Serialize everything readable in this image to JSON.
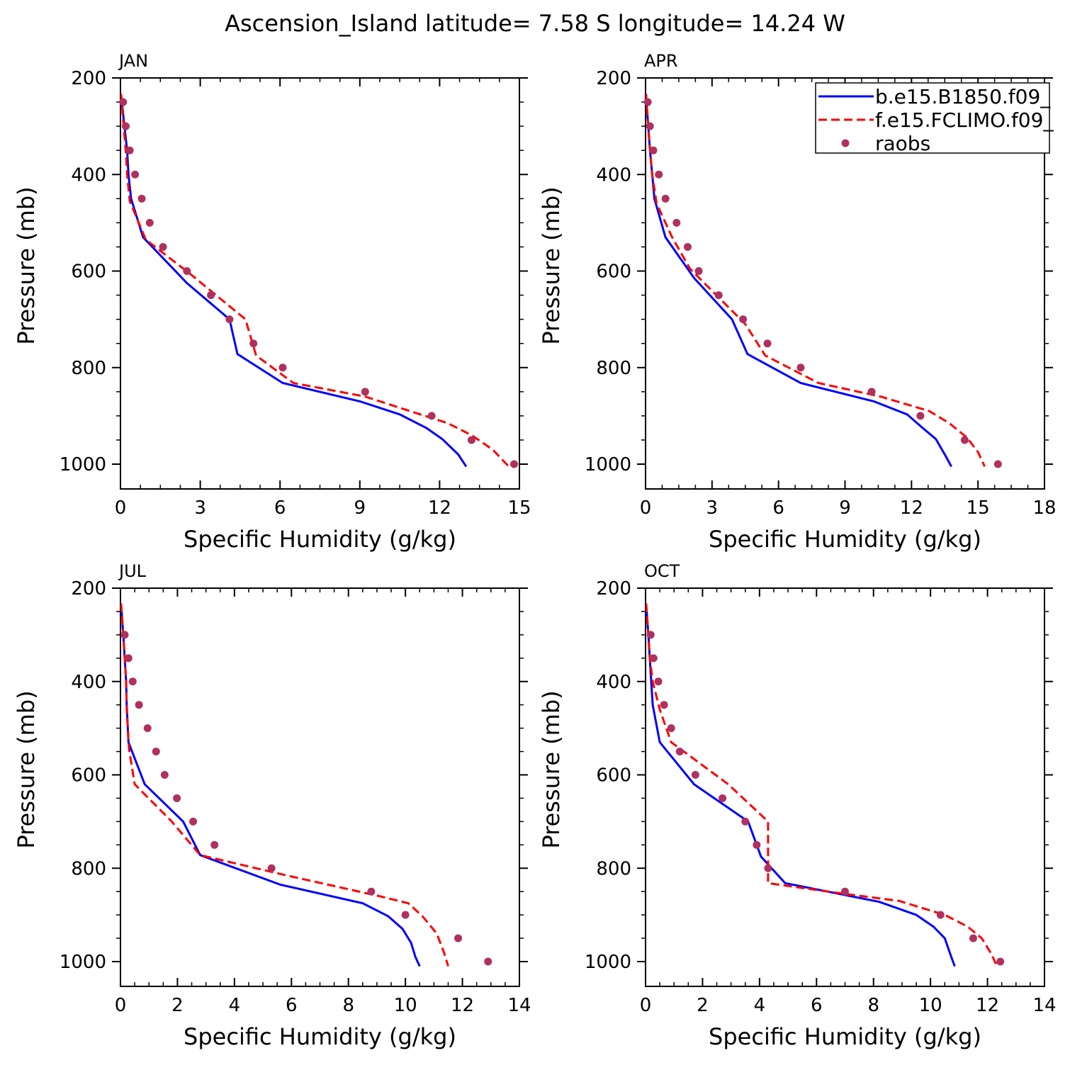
{
  "figure": {
    "title": "Ascension_Island  latitude= 7.58 S longitude= 14.24 W"
  },
  "legend": {
    "placement": "top-right of APR panel",
    "entries": [
      {
        "label": "b.e15.B1850.f09_",
        "style": "solid",
        "color": "#0000ff"
      },
      {
        "label": "f.e15.FCLIMO.f09_",
        "style": "dashed",
        "color": "#ff0000"
      },
      {
        "label": "raobs",
        "style": "dot",
        "color": "#b03060"
      }
    ]
  },
  "chart_data": [
    {
      "type": "line",
      "panel": "JAN",
      "title": "JAN",
      "xlabel": "Specific Humidity (g/kg)",
      "ylabel": "Pressure (mb)",
      "xlim": [
        0,
        15
      ],
      "ylim": [
        1025,
        200
      ],
      "xticks": [
        0,
        3,
        6,
        9,
        12,
        15
      ],
      "xtick_labels": [
        "0",
        "3",
        "6",
        "9",
        "12",
        "15"
      ],
      "yticks": [
        200,
        400,
        600,
        800,
        1000
      ],
      "ytick_labels": [
        "200",
        "400",
        "600",
        "800",
        "1000"
      ],
      "series": [
        {
          "name": "b.e15.B1850.f09_",
          "style": "solid",
          "color": "#0000ff",
          "points": [
            [
              0.02,
              233
            ],
            [
              0.15,
              300
            ],
            [
              0.25,
              350
            ],
            [
              0.3,
              400
            ],
            [
              0.4,
              450
            ],
            [
              0.85,
              530
            ],
            [
              2.5,
              625
            ],
            [
              4.1,
              700
            ],
            [
              4.4,
              772
            ],
            [
              6.1,
              832
            ],
            [
              9.0,
              870
            ],
            [
              10.5,
              897
            ],
            [
              11.5,
              925
            ],
            [
              12.1,
              948
            ],
            [
              12.7,
              980
            ],
            [
              13.0,
              1005
            ]
          ]
        },
        {
          "name": "f.e15.FCLIMO.f09_",
          "style": "dashed",
          "color": "#ff0000",
          "points": [
            [
              0.02,
              233
            ],
            [
              0.12,
              300
            ],
            [
              0.2,
              350
            ],
            [
              0.25,
              400
            ],
            [
              0.35,
              455
            ],
            [
              0.95,
              535
            ],
            [
              2.6,
              605
            ],
            [
              4.7,
              700
            ],
            [
              5.1,
              775
            ],
            [
              6.5,
              832
            ],
            [
              9.2,
              860
            ],
            [
              10.6,
              885
            ],
            [
              12.3,
              915
            ],
            [
              13.2,
              940
            ],
            [
              14.0,
              970
            ],
            [
              14.6,
              1005
            ]
          ]
        },
        {
          "name": "raobs",
          "style": "dot",
          "color": "#b03060",
          "points": [
            [
              0.1,
              250
            ],
            [
              0.2,
              300
            ],
            [
              0.35,
              350
            ],
            [
              0.55,
              400
            ],
            [
              0.8,
              450
            ],
            [
              1.1,
              500
            ],
            [
              1.6,
              550
            ],
            [
              2.5,
              600
            ],
            [
              3.4,
              650
            ],
            [
              4.1,
              700
            ],
            [
              5.0,
              750
            ],
            [
              6.1,
              800
            ],
            [
              9.2,
              850
            ],
            [
              11.7,
              900
            ],
            [
              13.2,
              950
            ],
            [
              14.8,
              1000
            ]
          ]
        }
      ]
    },
    {
      "type": "line",
      "panel": "APR",
      "title": "APR",
      "xlabel": "Specific Humidity (g/kg)",
      "ylabel": "Pressure (mb)",
      "xlim": [
        0,
        18
      ],
      "ylim": [
        1025,
        200
      ],
      "xticks": [
        0,
        3,
        6,
        9,
        12,
        15,
        18
      ],
      "xtick_labels": [
        "0",
        "3",
        "6",
        "9",
        "12",
        "15",
        "18"
      ],
      "yticks": [
        200,
        400,
        600,
        800,
        1000
      ],
      "ytick_labels": [
        "200",
        "400",
        "600",
        "800",
        "1000"
      ],
      "series": [
        {
          "name": "b.e15.B1850.f09_",
          "style": "solid",
          "color": "#0000ff",
          "points": [
            [
              0.02,
              233
            ],
            [
              0.12,
              300
            ],
            [
              0.2,
              350
            ],
            [
              0.3,
              400
            ],
            [
              0.4,
              450
            ],
            [
              0.9,
              530
            ],
            [
              2.2,
              615
            ],
            [
              3.9,
              700
            ],
            [
              4.6,
              772
            ],
            [
              7.0,
              832
            ],
            [
              10.3,
              870
            ],
            [
              11.8,
              897
            ],
            [
              12.5,
              925
            ],
            [
              13.1,
              948
            ],
            [
              13.5,
              980
            ],
            [
              13.8,
              1005
            ]
          ]
        },
        {
          "name": "f.e15.FCLIMO.f09_",
          "style": "dashed",
          "color": "#ff0000",
          "points": [
            [
              0.02,
              233
            ],
            [
              0.12,
              300
            ],
            [
              0.2,
              350
            ],
            [
              0.3,
              400
            ],
            [
              0.5,
              460
            ],
            [
              1.2,
              530
            ],
            [
              2.0,
              595
            ],
            [
              4.5,
              710
            ],
            [
              5.4,
              775
            ],
            [
              7.8,
              832
            ],
            [
              10.6,
              860
            ],
            [
              12.8,
              890
            ],
            [
              13.7,
              915
            ],
            [
              14.5,
              945
            ],
            [
              15.0,
              975
            ],
            [
              15.3,
              1005
            ]
          ]
        },
        {
          "name": "raobs",
          "style": "dot",
          "color": "#b03060",
          "points": [
            [
              0.1,
              250
            ],
            [
              0.2,
              300
            ],
            [
              0.35,
              350
            ],
            [
              0.6,
              400
            ],
            [
              0.9,
              450
            ],
            [
              1.4,
              500
            ],
            [
              1.9,
              550
            ],
            [
              2.4,
              600
            ],
            [
              3.3,
              650
            ],
            [
              4.4,
              700
            ],
            [
              5.5,
              750
            ],
            [
              7.0,
              800
            ],
            [
              10.2,
              850
            ],
            [
              12.4,
              900
            ],
            [
              14.4,
              950
            ],
            [
              15.9,
              1000
            ]
          ]
        }
      ]
    },
    {
      "type": "line",
      "panel": "JUL",
      "title": "JUL",
      "xlabel": "Specific Humidity (g/kg)",
      "ylabel": "Pressure (mb)",
      "xlim": [
        0,
        14
      ],
      "ylim": [
        1025,
        200
      ],
      "xticks": [
        0,
        2,
        4,
        6,
        8,
        10,
        12,
        14
      ],
      "xtick_labels": [
        "0",
        "2",
        "4",
        "6",
        "8",
        "10",
        "12",
        "14"
      ],
      "yticks": [
        200,
        400,
        600,
        800,
        1000
      ],
      "ytick_labels": [
        "200",
        "400",
        "600",
        "800",
        "1000"
      ],
      "series": [
        {
          "name": "b.e15.B1850.f09_",
          "style": "solid",
          "color": "#0000ff",
          "points": [
            [
              0.02,
              233
            ],
            [
              0.1,
              300
            ],
            [
              0.15,
              350
            ],
            [
              0.2,
              400
            ],
            [
              0.22,
              450
            ],
            [
              0.28,
              530
            ],
            [
              0.85,
              620
            ],
            [
              2.2,
              700
            ],
            [
              2.8,
              772
            ],
            [
              5.6,
              835
            ],
            [
              8.5,
              875
            ],
            [
              9.4,
              903
            ],
            [
              9.9,
              930
            ],
            [
              10.2,
              960
            ],
            [
              10.35,
              990
            ],
            [
              10.5,
              1010
            ]
          ]
        },
        {
          "name": "f.e15.FCLIMO.f09_",
          "style": "dashed",
          "color": "#ff0000",
          "points": [
            [
              0.02,
              233
            ],
            [
              0.1,
              300
            ],
            [
              0.15,
              350
            ],
            [
              0.2,
              400
            ],
            [
              0.22,
              460
            ],
            [
              0.3,
              545
            ],
            [
              0.5,
              620
            ],
            [
              1.8,
              700
            ],
            [
              2.8,
              772
            ],
            [
              5.8,
              815
            ],
            [
              9.1,
              860
            ],
            [
              10.1,
              875
            ],
            [
              10.6,
              903
            ],
            [
              11.1,
              940
            ],
            [
              11.35,
              980
            ],
            [
              11.5,
              1010
            ]
          ]
        },
        {
          "name": "raobs",
          "style": "dot",
          "color": "#b03060",
          "points": [
            [
              0.15,
              300
            ],
            [
              0.28,
              350
            ],
            [
              0.43,
              400
            ],
            [
              0.65,
              450
            ],
            [
              0.95,
              500
            ],
            [
              1.25,
              550
            ],
            [
              1.55,
              600
            ],
            [
              1.98,
              650
            ],
            [
              2.55,
              700
            ],
            [
              3.3,
              750
            ],
            [
              5.3,
              800
            ],
            [
              8.8,
              850
            ],
            [
              10.0,
              900
            ],
            [
              11.85,
              950
            ],
            [
              12.9,
              1000
            ]
          ]
        }
      ]
    },
    {
      "type": "line",
      "panel": "OCT",
      "title": "OCT",
      "xlabel": "Specific Humidity (g/kg)",
      "ylabel": "Pressure (mb)",
      "xlim": [
        0,
        14
      ],
      "ylim": [
        1025,
        200
      ],
      "xticks": [
        0,
        2,
        4,
        6,
        8,
        10,
        12,
        14
      ],
      "xtick_labels": [
        "0",
        "2",
        "4",
        "6",
        "8",
        "10",
        "12",
        "14"
      ],
      "yticks": [
        200,
        400,
        600,
        800,
        1000
      ],
      "ytick_labels": [
        "200",
        "400",
        "600",
        "800",
        "1000"
      ],
      "series": [
        {
          "name": "b.e15.B1850.f09_",
          "style": "solid",
          "color": "#0000ff",
          "points": [
            [
              0.02,
              233
            ],
            [
              0.1,
              300
            ],
            [
              0.15,
              350
            ],
            [
              0.2,
              400
            ],
            [
              0.25,
              450
            ],
            [
              0.5,
              530
            ],
            [
              1.7,
              620
            ],
            [
              3.6,
              700
            ],
            [
              4.05,
              775
            ],
            [
              4.9,
              832
            ],
            [
              8.2,
              872
            ],
            [
              9.5,
              900
            ],
            [
              10.1,
              925
            ],
            [
              10.5,
              950
            ],
            [
              10.7,
              985
            ],
            [
              10.85,
              1010
            ]
          ]
        },
        {
          "name": "f.e15.FCLIMO.f09_",
          "style": "dashed",
          "color": "#ff0000",
          "points": [
            [
              0.02,
              233
            ],
            [
              0.1,
              300
            ],
            [
              0.15,
              350
            ],
            [
              0.25,
              400
            ],
            [
              0.5,
              460
            ],
            [
              0.9,
              530
            ],
            [
              2.9,
              620
            ],
            [
              4.3,
              700
            ],
            [
              4.3,
              832
            ],
            [
              7.0,
              855
            ],
            [
              8.9,
              870
            ],
            [
              10.5,
              900
            ],
            [
              11.3,
              925
            ],
            [
              11.8,
              950
            ],
            [
              12.1,
              980
            ],
            [
              12.3,
              1005
            ]
          ]
        },
        {
          "name": "raobs",
          "style": "dot",
          "color": "#b03060",
          "points": [
            [
              0.18,
              300
            ],
            [
              0.28,
              350
            ],
            [
              0.45,
              400
            ],
            [
              0.65,
              450
            ],
            [
              0.9,
              500
            ],
            [
              1.2,
              550
            ],
            [
              1.75,
              600
            ],
            [
              2.7,
              650
            ],
            [
              3.5,
              700
            ],
            [
              3.9,
              750
            ],
            [
              4.3,
              800
            ],
            [
              7.0,
              850
            ],
            [
              10.35,
              900
            ],
            [
              11.5,
              950
            ],
            [
              12.45,
              1000
            ]
          ]
        }
      ]
    }
  ]
}
